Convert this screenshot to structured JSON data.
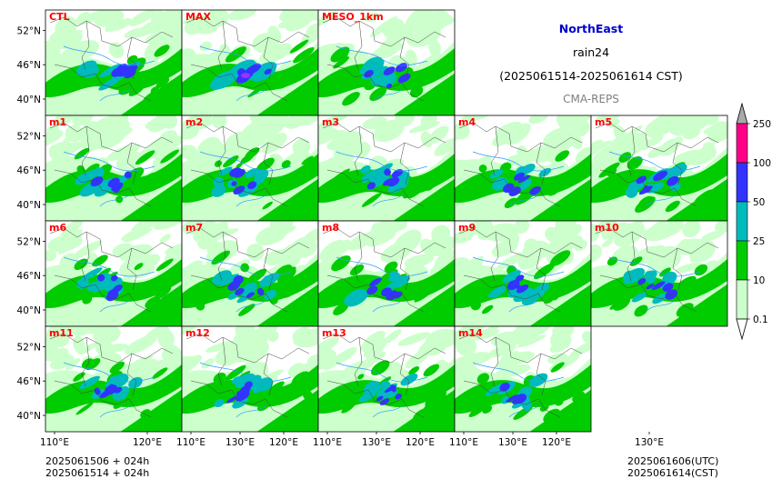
{
  "header": {
    "region": "NorthEast",
    "variable": "rain24",
    "period": "(2025061514-2025061614 CST)",
    "source": "CMA-REPS"
  },
  "panels": [
    {
      "label": "CTL"
    },
    {
      "label": "MAX"
    },
    {
      "label": "MESO_1km"
    },
    {
      "label": "m1"
    },
    {
      "label": "m2"
    },
    {
      "label": "m3"
    },
    {
      "label": "m4"
    },
    {
      "label": "m5"
    },
    {
      "label": "m6"
    },
    {
      "label": "m7"
    },
    {
      "label": "m8"
    },
    {
      "label": "m9"
    },
    {
      "label": "m10"
    },
    {
      "label": "m11"
    },
    {
      "label": "m12"
    },
    {
      "label": "m13"
    },
    {
      "label": "m14"
    }
  ],
  "axes": {
    "lat_ticks": [
      "52°N",
      "46°N",
      "40°N"
    ],
    "lon_ticks": [
      "110°E",
      "120°E",
      "130°E"
    ]
  },
  "colorbar": {
    "levels": [
      "0.1",
      "10",
      "25",
      "50",
      "100",
      "250"
    ],
    "colors": [
      "#ccffcc",
      "#00cc00",
      "#00bbbb",
      "#3333ff",
      "#ff0088",
      "#aaaaaa"
    ]
  },
  "footer": {
    "init_line1": "2025061506  +  024h",
    "init_line2": "2025061514  +  024h",
    "valid_utc": "2025061606(UTC)",
    "valid_cst": "2025061614(CST)"
  },
  "style": {
    "panel_label_color": "#ff0000",
    "border_color": "#000000",
    "river_color": "#3399ff"
  }
}
